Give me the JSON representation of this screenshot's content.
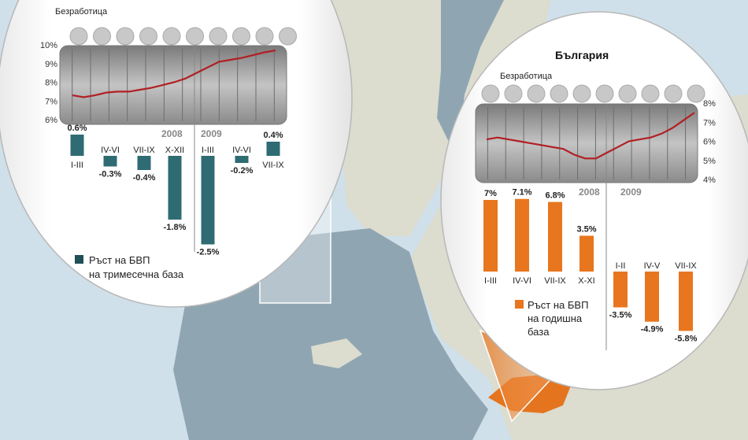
{
  "colors": {
    "sea": "#cfe0ea",
    "land": "#dcdccf",
    "eurozone": "#8fa6b2",
    "bulgaria": "#e5741f",
    "teal": "#2f6b73",
    "orange": "#e8761e",
    "line": "#b21f24"
  },
  "chart_data": [
    {
      "type": "line",
      "title": "Безработица",
      "years": [
        "2008",
        "2009"
      ],
      "y_ticks": [
        "10%",
        "9%",
        "8%",
        "7%",
        "6%"
      ],
      "ylim": [
        6,
        10
      ],
      "y": [
        7.3,
        7.2,
        7.3,
        7.45,
        7.5,
        7.5,
        7.6,
        7.7,
        7.85,
        8.0,
        8.2,
        8.5,
        8.8,
        9.1,
        9.2,
        9.3,
        9.45,
        9.6,
        9.7
      ]
    },
    {
      "type": "bar",
      "legend": "Ръст на БВП на тримесечна база",
      "categories": [
        "I-III",
        "IV-VI",
        "VII-IX",
        "X-XII",
        "I-III",
        "IV-VI",
        "VII-IX"
      ],
      "values": [
        0.6,
        -0.3,
        -0.4,
        -1.8,
        -2.5,
        -0.2,
        0.4
      ],
      "labels": [
        "0.6%",
        "-0.3%",
        "-0.4%",
        "-1.8%",
        "-2.5%",
        "-0.2%",
        "0.4%"
      ]
    },
    {
      "type": "line",
      "country": "България",
      "title": "Безработица",
      "years": [
        "2008",
        "2009"
      ],
      "y_ticks": [
        "8%",
        "7%",
        "6%",
        "5%",
        "4%"
      ],
      "ylim": [
        4,
        8
      ],
      "y": [
        6.1,
        6.2,
        6.1,
        6.0,
        5.9,
        5.8,
        5.7,
        5.6,
        5.3,
        5.1,
        5.1,
        5.4,
        5.7,
        6.0,
        6.1,
        6.2,
        6.4,
        6.7,
        7.1,
        7.5
      ]
    },
    {
      "type": "bar",
      "legend": "Ръст на БВП на годишна база",
      "categories": [
        "I-III",
        "IV-VI",
        "VII-IX",
        "X-XI",
        "I-II",
        "IV-V",
        "VII-IX"
      ],
      "values": [
        7.0,
        7.1,
        6.8,
        3.5,
        -3.5,
        -4.9,
        -5.8
      ],
      "labels": [
        "7%",
        "7.1%",
        "6.8%",
        "3.5%",
        "-3.5%",
        "-4.9%",
        "-5.8%"
      ]
    }
  ]
}
